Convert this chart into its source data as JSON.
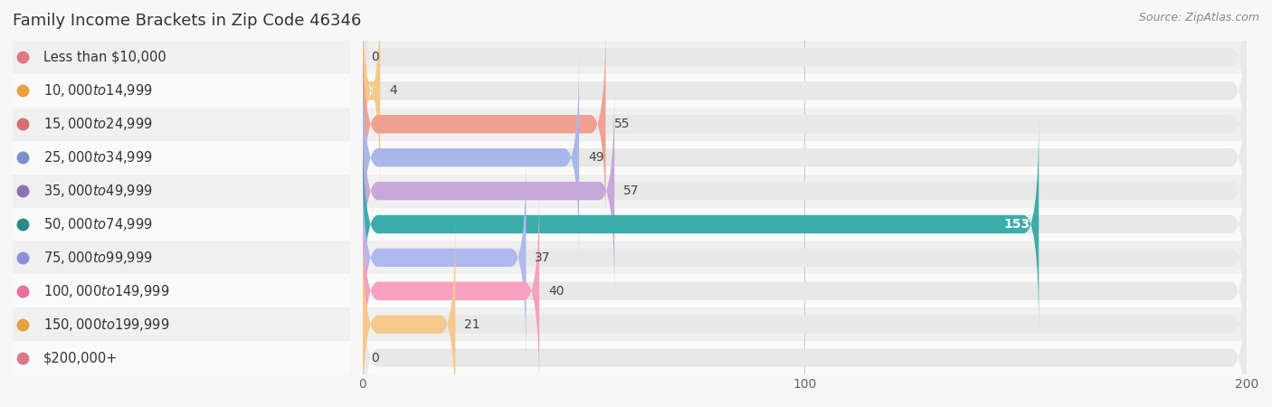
{
  "title": "Family Income Brackets in Zip Code 46346",
  "source": "Source: ZipAtlas.com",
  "categories": [
    "Less than $10,000",
    "$10,000 to $14,999",
    "$15,000 to $24,999",
    "$25,000 to $34,999",
    "$35,000 to $49,999",
    "$50,000 to $74,999",
    "$75,000 to $99,999",
    "$100,000 to $149,999",
    "$150,000 to $199,999",
    "$200,000+"
  ],
  "values": [
    0,
    4,
    55,
    49,
    57,
    153,
    37,
    40,
    21,
    0
  ],
  "bar_colors": [
    "#f0a0aa",
    "#f5c98a",
    "#f0a090",
    "#a8b8e8",
    "#c8a8d8",
    "#3aadaa",
    "#b0b8f0",
    "#f8a0c0",
    "#f5c98a",
    "#f0a0a8"
  ],
  "dot_colors": [
    "#e07888",
    "#e8a040",
    "#d87070",
    "#7890d0",
    "#9070b8",
    "#2a8a88",
    "#8890d8",
    "#e870a0",
    "#e8a040",
    "#d87888"
  ],
  "background_color": "#f7f7f7",
  "bar_bg_color": "#e8e8e8",
  "row_bg_colors": [
    "#f0f0f0",
    "#fafafa"
  ],
  "xlim": [
    0,
    200
  ],
  "xticks": [
    0,
    100,
    200
  ],
  "title_fontsize": 13,
  "label_fontsize": 10.5,
  "value_fontsize": 10,
  "source_fontsize": 9
}
